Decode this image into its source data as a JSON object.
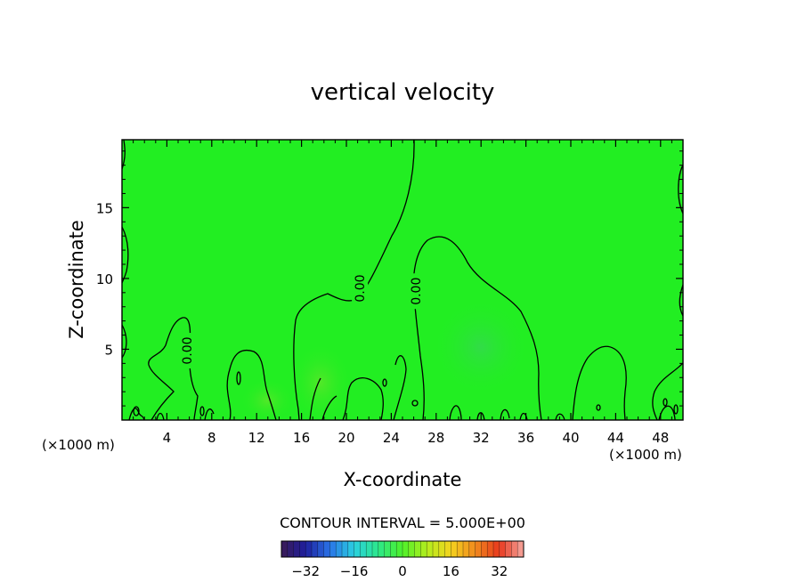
{
  "chart_data": {
    "type": "heatmap",
    "title": "vertical velocity",
    "xlabel": "X-coordinate",
    "ylabel": "Z-coordinate",
    "x_unit": "(×1000 m)",
    "z_unit": "(×1000 m)",
    "x_ticks": [
      4,
      8,
      12,
      16,
      20,
      24,
      28,
      32,
      36,
      40,
      44,
      48
    ],
    "y_ticks": [
      5,
      10,
      15
    ],
    "xlim": [
      0,
      50
    ],
    "ylim": [
      0,
      19.8
    ],
    "field_color": "#22ee22",
    "contour_label": "0.00",
    "contour_labels": [
      {
        "text": "0.00",
        "x": 5.8,
        "z": 4.9
      },
      {
        "text": "0.00",
        "x": 21.2,
        "z": 9.3
      },
      {
        "text": "0.00",
        "x": 26.2,
        "z": 9.1
      }
    ],
    "contour_interval_text": "CONTOUR INTERVAL = 5.000E+00",
    "colorbar": {
      "min": -40,
      "max": 40,
      "ticks": [
        -32,
        -16,
        0,
        16,
        32
      ],
      "colors": [
        "#3b1a55",
        "#1e1f9e",
        "#2a73e8",
        "#2bd0e0",
        "#2ce88a",
        "#4ef02a",
        "#b4ee1e",
        "#f4d21e",
        "#f08a1e",
        "#e8381e",
        "#f6a8a0"
      ]
    }
  }
}
